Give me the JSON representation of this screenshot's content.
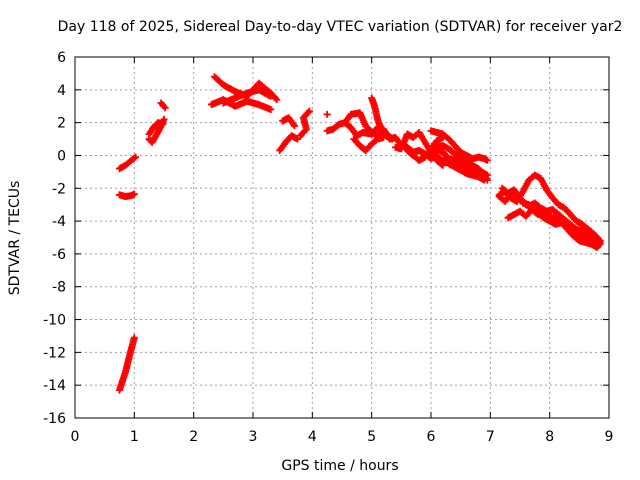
{
  "chart_data": {
    "type": "scatter",
    "title": "Day 118 of 2025, Sidereal Day-to-day VTEC variation (SDTVAR) for receiver yar2",
    "xlabel": "GPS time / hours",
    "ylabel": "SDTVAR / TECUs",
    "xlim": [
      0,
      9
    ],
    "ylim": [
      -16,
      6
    ],
    "xticks": [
      0,
      1,
      2,
      3,
      4,
      5,
      6,
      7,
      8,
      9
    ],
    "yticks": [
      -16,
      -14,
      -12,
      -10,
      -8,
      -6,
      -4,
      -2,
      0,
      2,
      4,
      6
    ],
    "grid": true,
    "marker": "plus",
    "series": [
      {
        "name": "SDTVAR",
        "color": "#ff0000",
        "tracks": [
          [
            [
              0.75,
              -0.8
            ],
            [
              0.85,
              -0.6
            ],
            [
              0.95,
              -0.3
            ],
            [
              1.02,
              -0.1
            ]
          ],
          [
            [
              0.75,
              -2.4
            ],
            [
              0.85,
              -2.5
            ],
            [
              0.95,
              -2.45
            ],
            [
              1.0,
              -2.35
            ]
          ],
          [
            [
              0.75,
              -14.3
            ],
            [
              0.85,
              -13.2
            ],
            [
              0.92,
              -12.2
            ],
            [
              1.0,
              -11.1
            ]
          ],
          [
            [
              1.25,
              1.0
            ],
            [
              1.3,
              0.8
            ],
            [
              1.38,
              1.3
            ],
            [
              1.45,
              1.8
            ],
            [
              1.5,
              2.2
            ]
          ],
          [
            [
              1.25,
              1.3
            ],
            [
              1.32,
              1.7
            ],
            [
              1.4,
              2.0
            ],
            [
              1.48,
              1.9
            ]
          ],
          [
            [
              1.45,
              3.2
            ],
            [
              1.52,
              2.9
            ]
          ],
          [
            [
              2.3,
              3.1
            ],
            [
              2.5,
              3.4
            ],
            [
              2.7,
              3.0
            ],
            [
              2.9,
              3.3
            ],
            [
              3.1,
              3.1
            ],
            [
              3.3,
              2.8
            ]
          ],
          [
            [
              2.35,
              4.8
            ],
            [
              2.5,
              4.3
            ],
            [
              2.7,
              3.9
            ],
            [
              2.9,
              3.6
            ],
            [
              3.1,
              4.4
            ],
            [
              3.3,
              3.8
            ],
            [
              3.4,
              3.4
            ]
          ],
          [
            [
              2.5,
              3.2
            ],
            [
              2.7,
              3.5
            ],
            [
              2.9,
              3.8
            ],
            [
              3.1,
              4.0
            ],
            [
              3.3,
              3.6
            ]
          ],
          [
            [
              3.5,
              2.1
            ],
            [
              3.6,
              2.3
            ],
            [
              3.7,
              1.8
            ]
          ],
          [
            [
              3.45,
              0.3
            ],
            [
              3.55,
              0.8
            ],
            [
              3.65,
              1.2
            ],
            [
              3.75,
              1.0
            ]
          ],
          [
            [
              3.8,
              1.2
            ],
            [
              3.9,
              1.6
            ],
            [
              3.85,
              2.3
            ],
            [
              3.95,
              2.7
            ]
          ],
          [
            [
              4.25,
              2.5
            ]
          ],
          [
            [
              4.25,
              1.5
            ],
            [
              4.35,
              1.6
            ],
            [
              4.45,
              1.9
            ],
            [
              4.55,
              2.0
            ],
            [
              4.65,
              2.5
            ],
            [
              4.8,
              2.6
            ],
            [
              4.9,
              1.8
            ],
            [
              5.0,
              1.4
            ],
            [
              5.1,
              1.2
            ],
            [
              5.2,
              1.6
            ],
            [
              5.3,
              1.0
            ]
          ],
          [
            [
              4.55,
              2.0
            ],
            [
              4.65,
              1.7
            ],
            [
              4.75,
              1.2
            ],
            [
              4.85,
              1.4
            ],
            [
              5.0,
              1.3
            ],
            [
              5.1,
              1.7
            ],
            [
              5.2,
              1.5
            ],
            [
              5.35,
              1.0
            ]
          ],
          [
            [
              4.7,
              1.0
            ],
            [
              4.8,
              0.6
            ],
            [
              4.9,
              0.3
            ],
            [
              5.0,
              0.7
            ],
            [
              5.1,
              1.0
            ],
            [
              5.2,
              1.1
            ]
          ],
          [
            [
              5.0,
              3.5
            ],
            [
              5.05,
              3.0
            ],
            [
              5.1,
              2.2
            ],
            [
              5.15,
              1.7
            ],
            [
              5.25,
              1.2
            ]
          ],
          [
            [
              5.3,
              1.0
            ],
            [
              5.4,
              1.1
            ],
            [
              5.5,
              0.6
            ],
            [
              5.6,
              0.5
            ],
            [
              5.7,
              0.2
            ],
            [
              5.8,
              0.3
            ],
            [
              5.9,
              0.1
            ],
            [
              6.0,
              -0.2
            ],
            [
              6.1,
              0.0
            ],
            [
              6.2,
              -0.4
            ]
          ],
          [
            [
              5.4,
              0.5
            ],
            [
              5.5,
              0.4
            ],
            [
              5.6,
              1.3
            ],
            [
              5.7,
              1.1
            ],
            [
              5.8,
              1.4
            ],
            [
              5.9,
              0.8
            ],
            [
              6.0,
              0.2
            ],
            [
              6.1,
              -0.3
            ],
            [
              6.2,
              -0.6
            ]
          ],
          [
            [
              5.6,
              0.3
            ],
            [
              5.7,
              0.0
            ],
            [
              5.8,
              -0.3
            ],
            [
              5.9,
              -0.1
            ],
            [
              6.0,
              0.4
            ],
            [
              6.1,
              0.9
            ],
            [
              6.2,
              1.1
            ]
          ],
          [
            [
              6.0,
              1.5
            ],
            [
              6.1,
              1.4
            ],
            [
              6.2,
              1.3
            ],
            [
              6.3,
              1.0
            ],
            [
              6.4,
              0.6
            ],
            [
              6.5,
              0.2
            ],
            [
              6.6,
              0.0
            ],
            [
              6.7,
              -0.2
            ],
            [
              6.8,
              -0.1
            ],
            [
              6.9,
              -0.2
            ],
            [
              6.95,
              -0.3
            ]
          ],
          [
            [
              6.0,
              0.2
            ],
            [
              6.1,
              0.4
            ],
            [
              6.2,
              0.2
            ],
            [
              6.3,
              -0.2
            ],
            [
              6.4,
              -0.3
            ],
            [
              6.5,
              -0.6
            ],
            [
              6.6,
              -0.8
            ],
            [
              6.7,
              -1.0
            ],
            [
              6.8,
              -0.9
            ],
            [
              6.9,
              -1.1
            ],
            [
              6.95,
              -1.2
            ]
          ],
          [
            [
              6.1,
              0.5
            ],
            [
              6.2,
              0.6
            ],
            [
              6.3,
              0.4
            ],
            [
              6.4,
              0.1
            ],
            [
              6.5,
              -0.2
            ],
            [
              6.6,
              -0.4
            ],
            [
              6.7,
              -0.6
            ],
            [
              6.8,
              -0.8
            ],
            [
              6.9,
              -1.2
            ],
            [
              6.95,
              -1.5
            ]
          ],
          [
            [
              6.2,
              -0.3
            ],
            [
              6.3,
              -0.5
            ],
            [
              6.4,
              -0.7
            ],
            [
              6.5,
              -0.9
            ],
            [
              6.6,
              -1.1
            ],
            [
              6.7,
              -1.2
            ],
            [
              6.8,
              -1.3
            ],
            [
              6.9,
              -1.5
            ]
          ],
          [
            [
              7.15,
              -2.4
            ],
            [
              7.25,
              -2.2
            ],
            [
              7.35,
              -2.6
            ],
            [
              7.45,
              -2.8
            ],
            [
              7.55,
              -2.2
            ],
            [
              7.65,
              -1.5
            ],
            [
              7.75,
              -1.2
            ],
            [
              7.85,
              -1.4
            ],
            [
              7.95,
              -2.1
            ],
            [
              8.05,
              -2.6
            ],
            [
              8.15,
              -3.0
            ],
            [
              8.25,
              -3.2
            ],
            [
              8.35,
              -3.6
            ],
            [
              8.45,
              -4.0
            ],
            [
              8.55,
              -4.2
            ],
            [
              8.65,
              -4.5
            ],
            [
              8.75,
              -4.8
            ],
            [
              8.85,
              -5.2
            ]
          ],
          [
            [
              7.15,
              -2.5
            ],
            [
              7.25,
              -2.8
            ],
            [
              7.35,
              -2.3
            ],
            [
              7.45,
              -2.5
            ],
            [
              7.55,
              -2.9
            ],
            [
              7.65,
              -3.0
            ],
            [
              7.75,
              -3.3
            ],
            [
              7.85,
              -3.5
            ],
            [
              7.95,
              -3.6
            ],
            [
              8.05,
              -3.8
            ],
            [
              8.15,
              -3.8
            ],
            [
              8.25,
              -4.0
            ],
            [
              8.35,
              -4.4
            ],
            [
              8.45,
              -4.7
            ],
            [
              8.55,
              -4.9
            ],
            [
              8.65,
              -5.0
            ],
            [
              8.75,
              -5.1
            ],
            [
              8.85,
              -5.3
            ]
          ],
          [
            [
              7.2,
              -2.0
            ],
            [
              7.3,
              -2.3
            ],
            [
              7.4,
              -2.1
            ],
            [
              7.5,
              -2.6
            ],
            [
              7.6,
              -3.0
            ],
            [
              7.7,
              -3.2
            ],
            [
              7.8,
              -3.5
            ],
            [
              7.9,
              -3.8
            ],
            [
              8.0,
              -4.0
            ],
            [
              8.1,
              -4.2
            ],
            [
              8.2,
              -4.1
            ],
            [
              8.3,
              -4.5
            ],
            [
              8.4,
              -4.9
            ],
            [
              8.5,
              -5.2
            ],
            [
              8.6,
              -5.3
            ],
            [
              8.7,
              -5.4
            ],
            [
              8.8,
              -5.6
            ],
            [
              8.85,
              -5.4
            ]
          ],
          [
            [
              7.3,
              -3.8
            ],
            [
              7.4,
              -3.6
            ],
            [
              7.5,
              -3.4
            ],
            [
              7.6,
              -3.7
            ],
            [
              7.7,
              -3.3
            ],
            [
              7.8,
              -3.6
            ]
          ],
          [
            [
              7.55,
              -2.8
            ],
            [
              7.65,
              -3.1
            ],
            [
              7.75,
              -2.9
            ],
            [
              7.85,
              -3.2
            ],
            [
              7.95,
              -3.4
            ],
            [
              8.05,
              -3.3
            ],
            [
              8.15,
              -3.6
            ],
            [
              8.25,
              -3.9
            ],
            [
              8.35,
              -4.2
            ],
            [
              8.45,
              -4.5
            ],
            [
              8.55,
              -4.6
            ],
            [
              8.65,
              -4.8
            ],
            [
              8.75,
              -5.0
            ],
            [
              8.85,
              -5.2
            ]
          ]
        ]
      }
    ]
  }
}
